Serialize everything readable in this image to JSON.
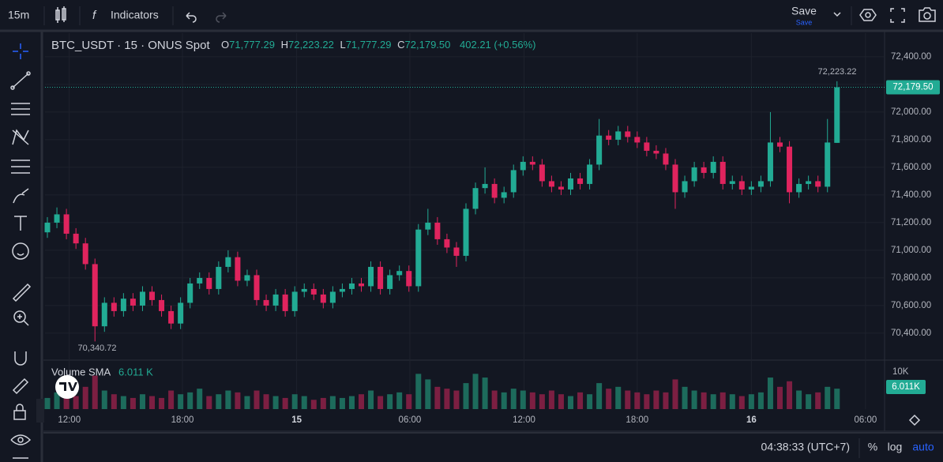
{
  "toolbar": {
    "interval": "15m",
    "indicators": "Indicators",
    "save": "Save",
    "save_sub": "Save"
  },
  "legend": {
    "o_label": "O",
    "open": "71,777.29",
    "h_label": "H",
    "high": "72,223.22",
    "l_label": "L",
    "low": "71,777.29",
    "c_label": "C",
    "close": "72,179.50",
    "change": "402.21 (+0.56%)"
  },
  "status": {
    "clock": "04:38:33 (UTC+7)",
    "percent": "%",
    "log": "log",
    "auto": "auto"
  },
  "chart_data": [
    {
      "type": "candlestick",
      "title": "BTC_USDT · 15 · ONUS Spot",
      "up_color": "#22ab94",
      "down_color": "#e0245e",
      "grid": true,
      "high_label": "72,223.22",
      "low_label": "70,340.72",
      "last_price_label": "72,179.50",
      "ylim": [
        70211,
        72571
      ],
      "yticks": [
        {
          "value": 70400,
          "label": "70,400.00"
        },
        {
          "value": 70600,
          "label": "70,600.00"
        },
        {
          "value": 70800,
          "label": "70,800.00"
        },
        {
          "value": 71000,
          "label": "71,000.00"
        },
        {
          "value": 71200,
          "label": "71,200.00"
        },
        {
          "value": 71400,
          "label": "71,400.00"
        },
        {
          "value": 71600,
          "label": "71,600.00"
        },
        {
          "value": 71800,
          "label": "71,800.00"
        },
        {
          "value": 72000,
          "label": "72,000.00"
        },
        {
          "value": 72200,
          "label": "72,200.00"
        },
        {
          "value": 72400,
          "label": "72,400.00"
        }
      ],
      "xlim": [
        -0.25,
        88
      ],
      "xticks": [
        {
          "value": 2.3,
          "label": "12:00"
        },
        {
          "value": 14.2,
          "label": "18:00"
        },
        {
          "value": 26.2,
          "label": "15"
        },
        {
          "value": 38.1,
          "label": "06:00"
        },
        {
          "value": 50.1,
          "label": "12:00"
        },
        {
          "value": 62,
          "label": "18:00"
        },
        {
          "value": 74,
          "label": "16"
        },
        {
          "value": 86,
          "label": "06:00"
        }
      ],
      "open": [
        71130,
        71200,
        71260,
        71120,
        71050,
        70900,
        70450,
        70620,
        70560,
        70650,
        70600,
        70700,
        70640,
        70560,
        70470,
        70620,
        70760,
        70800,
        70720,
        70880,
        70950,
        70780,
        70820,
        70640,
        70600,
        70680,
        70560,
        70700,
        70720,
        70680,
        70620,
        70700,
        70720,
        70760,
        70740,
        70880,
        70720,
        70820,
        70850,
        70740,
        71150,
        71200,
        71080,
        71020,
        70960,
        71300,
        71450,
        71480,
        71380,
        71420,
        71580,
        71640,
        71620,
        71500,
        71460,
        71440,
        71520,
        71480,
        71620,
        71830,
        71800,
        71860,
        71820,
        71780,
        71720,
        71700,
        71620,
        71420,
        71500,
        71600,
        71560,
        71640,
        71480,
        71500,
        71440,
        71460,
        71500,
        71780,
        71750,
        71420,
        71480,
        71500,
        71460,
        71777.29
      ],
      "high": [
        71240,
        71310,
        71300,
        71160,
        71090,
        70940,
        70660,
        70660,
        70690,
        70690,
        70740,
        70740,
        70680,
        70600,
        70660,
        70800,
        70840,
        70840,
        70920,
        71000,
        70990,
        70860,
        70860,
        70680,
        70720,
        70720,
        70740,
        70760,
        70760,
        70720,
        70740,
        70760,
        70800,
        70800,
        70920,
        70920,
        70860,
        70890,
        70890,
        71190,
        71300,
        71240,
        71120,
        71060,
        71340,
        71490,
        71600,
        71520,
        71460,
        71620,
        71680,
        71680,
        71660,
        71540,
        71500,
        71560,
        71560,
        71660,
        71950,
        71870,
        71900,
        71900,
        71860,
        71820,
        71760,
        71740,
        71660,
        71540,
        71640,
        71640,
        71680,
        71680,
        71540,
        71540,
        71500,
        71540,
        72000,
        71820,
        71790,
        71520,
        71540,
        71540,
        71950,
        72223.22
      ],
      "low": [
        71090,
        71160,
        71080,
        71010,
        70860,
        70340.72,
        70410,
        70520,
        70520,
        70560,
        70560,
        70600,
        70520,
        70430,
        70430,
        70580,
        70720,
        70680,
        70680,
        70840,
        70740,
        70740,
        70600,
        70560,
        70560,
        70520,
        70520,
        70660,
        70640,
        70580,
        70580,
        70660,
        70680,
        70700,
        70700,
        70680,
        70680,
        70780,
        70700,
        70700,
        71110,
        71040,
        70980,
        70880,
        70920,
        71260,
        71410,
        71340,
        71340,
        71380,
        71540,
        71580,
        71460,
        71420,
        71400,
        71400,
        71440,
        71440,
        71580,
        71760,
        71760,
        71780,
        71740,
        71680,
        71660,
        71580,
        71300,
        71380,
        71460,
        71520,
        71520,
        71440,
        71440,
        71400,
        71400,
        71420,
        71460,
        71710,
        71340,
        71380,
        71440,
        71420,
        71420,
        71777.29
      ],
      "close": [
        71200,
        71260,
        71120,
        71050,
        70900,
        70450,
        70620,
        70560,
        70650,
        70600,
        70700,
        70640,
        70560,
        70470,
        70620,
        70760,
        70800,
        70720,
        70880,
        70950,
        70780,
        70820,
        70640,
        70600,
        70680,
        70560,
        70700,
        70720,
        70680,
        70620,
        70700,
        70720,
        70760,
        70740,
        70880,
        70720,
        70820,
        70850,
        70740,
        71150,
        71200,
        71080,
        71020,
        70960,
        71300,
        71450,
        71480,
        71380,
        71420,
        71580,
        71640,
        71620,
        71500,
        71460,
        71440,
        71520,
        71480,
        71620,
        71830,
        71800,
        71860,
        71820,
        71780,
        71720,
        71700,
        71620,
        71420,
        71500,
        71600,
        71560,
        71640,
        71480,
        71500,
        71440,
        71460,
        71500,
        71780,
        71750,
        71420,
        71480,
        71500,
        71460,
        71780,
        72179.5
      ]
    },
    {
      "type": "volume",
      "title": "Volume SMA",
      "sma_label": "6.011 K",
      "last_label": "6.011K",
      "up_color": "#1d6b5c",
      "down_color": "#7c1f42",
      "ylim": [
        0,
        12770
      ],
      "yticks": [
        {
          "value": 10000,
          "label": "10K"
        }
      ],
      "values": [
        3000,
        4500,
        5000,
        3500,
        6000,
        9000,
        5000,
        4000,
        3500,
        3000,
        4000,
        3500,
        3000,
        5000,
        4000,
        4500,
        5500,
        3500,
        4000,
        5000,
        4500,
        3500,
        5000,
        4000,
        3500,
        3000,
        4000,
        3500,
        2500,
        3000,
        3500,
        3000,
        3500,
        4000,
        5000,
        3500,
        4000,
        4500,
        4000,
        9500,
        8000,
        6000,
        5500,
        5000,
        7000,
        9500,
        8500,
        5000,
        4500,
        5500,
        5000,
        4500,
        4000,
        5000,
        4000,
        3500,
        4500,
        4000,
        7000,
        5500,
        6000,
        5000,
        4500,
        4000,
        5000,
        4500,
        8000,
        6000,
        5000,
        4500,
        4000,
        4500,
        4000,
        3500,
        4000,
        4500,
        8500,
        6000,
        7500,
        5000,
        4000,
        4500,
        6000,
        5500
      ]
    }
  ]
}
